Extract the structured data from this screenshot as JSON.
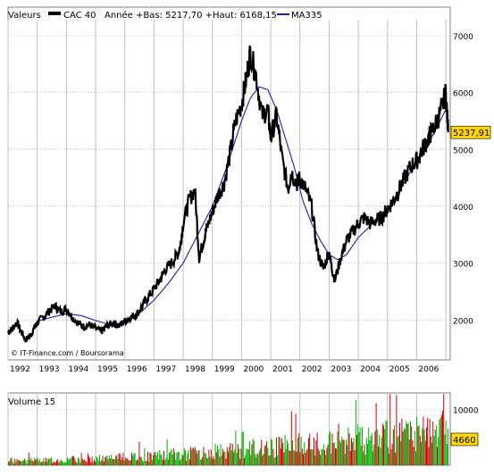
{
  "header": {
    "label": "Valeurs",
    "series_name": "CAC 40",
    "stats": "Année +Bas: 5217,70 +Haut: 6168,15",
    "ma_name": "MA335"
  },
  "footer": {
    "credit": "© IT-Finance.com / Boursorama"
  },
  "colors": {
    "price": "#000000",
    "ma": "#1f1fb4",
    "grid": "#c0c0c0",
    "volume_up": "#00b000",
    "volume_down": "#d00000",
    "last_price_box": "#ffd700",
    "last_volume_box": "#ffd700"
  },
  "chart_data": [
    {
      "type": "line",
      "title": "",
      "xlabel": "",
      "ylabel": "",
      "x_ticks": [
        "1992",
        "1993",
        "1994",
        "1995",
        "1996",
        "1997",
        "1998",
        "1999",
        "2000",
        "2001",
        "2002",
        "2003",
        "2004",
        "2005",
        "2006"
      ],
      "y_ticks": [
        2000,
        3000,
        4000,
        5000,
        6000,
        7000
      ],
      "xlim": [
        1992.0,
        2007.15
      ],
      "ylim": [
        1300,
        7500
      ],
      "grid": true,
      "legend": "top-left",
      "last_value_label": "5237,91",
      "series": [
        {
          "name": "CAC 40",
          "x": [
            1992.0,
            1992.15,
            1992.3,
            1992.45,
            1992.6,
            1992.75,
            1992.9,
            1993.0,
            1993.2,
            1993.4,
            1993.6,
            1993.8,
            1994.0,
            1994.2,
            1994.4,
            1994.6,
            1994.8,
            1995.0,
            1995.2,
            1995.4,
            1995.6,
            1995.8,
            1996.0,
            1996.2,
            1996.4,
            1996.6,
            1996.8,
            1997.0,
            1997.2,
            1997.4,
            1997.6,
            1997.8,
            1997.9,
            1998.0,
            1998.2,
            1998.4,
            1998.55,
            1998.7,
            1998.8,
            1999.0,
            1999.2,
            1999.4,
            1999.6,
            1999.8,
            2000.0,
            2000.15,
            2000.3,
            2000.5,
            2000.7,
            2000.9,
            2001.0,
            2001.2,
            2001.4,
            2001.6,
            2001.7,
            2001.9,
            2002.0,
            2002.2,
            2002.4,
            2002.6,
            2002.8,
            2003.0,
            2003.1,
            2003.2,
            2003.4,
            2003.6,
            2003.8,
            2004.0,
            2004.2,
            2004.4,
            2004.6,
            2004.8,
            2005.0,
            2005.2,
            2005.4,
            2005.6,
            2005.8,
            2006.0,
            2006.2,
            2006.4,
            2006.5,
            2006.7,
            2006.85,
            2007.0,
            2007.08
          ],
          "values": [
            1780,
            1850,
            1960,
            1800,
            1650,
            1720,
            1860,
            1950,
            2050,
            2150,
            2250,
            2150,
            2200,
            2050,
            1950,
            1880,
            1920,
            1850,
            1800,
            1900,
            1950,
            1900,
            1980,
            2050,
            2100,
            2250,
            2400,
            2550,
            2700,
            2900,
            3000,
            3150,
            3300,
            3700,
            4100,
            4300,
            3100,
            3400,
            3600,
            3900,
            4200,
            4400,
            4900,
            5500,
            5800,
            6200,
            6700,
            6300,
            5600,
            5700,
            5200,
            5600,
            4800,
            4300,
            4600,
            4400,
            4500,
            4300,
            4000,
            3200,
            2900,
            3200,
            2900,
            2700,
            3100,
            3400,
            3550,
            3700,
            3800,
            3700,
            3750,
            3800,
            3950,
            4100,
            4300,
            4500,
            4700,
            4800,
            5000,
            5200,
            5300,
            5500,
            5700,
            6000,
            5300
          ]
        },
        {
          "name": "MA335",
          "x": [
            1993.0,
            1993.5,
            1994.0,
            1994.5,
            1995.0,
            1995.5,
            1996.0,
            1996.5,
            1997.0,
            1997.5,
            1998.0,
            1998.5,
            1999.0,
            1999.5,
            2000.0,
            2000.3,
            2000.6,
            2000.9,
            2001.2,
            2001.5,
            2001.8,
            2002.1,
            2002.4,
            2002.7,
            2003.0,
            2003.3,
            2003.6,
            2004.0,
            2004.5,
            2005.0,
            2005.5,
            2006.0,
            2006.5,
            2007.0
          ],
          "values": [
            1980,
            2050,
            2110,
            2080,
            1990,
            1920,
            1960,
            2120,
            2350,
            2650,
            3000,
            3500,
            4000,
            4700,
            5500,
            5900,
            6100,
            6050,
            5700,
            5200,
            4700,
            4100,
            3700,
            3400,
            3150,
            3060,
            3150,
            3450,
            3700,
            3950,
            4350,
            4800,
            5200,
            5700
          ]
        }
      ]
    },
    {
      "type": "bar",
      "title": "Volume 15",
      "y_ticks": [
        10000
      ],
      "ylim": [
        0,
        13000
      ],
      "last_value_label": "4660"
    }
  ]
}
